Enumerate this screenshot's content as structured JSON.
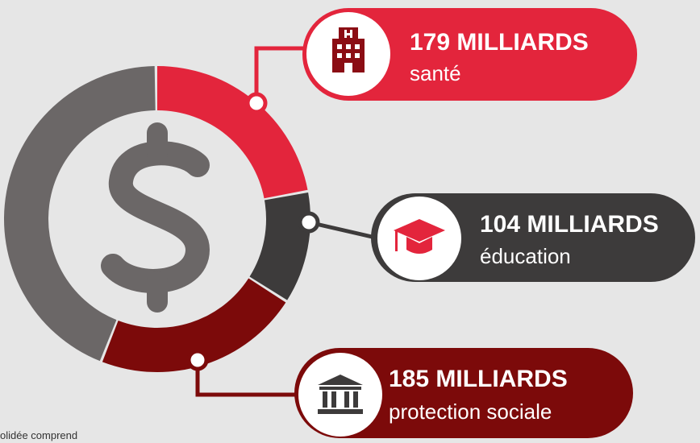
{
  "callouts": [
    {
      "amount": "179 MILLIARDS",
      "label": "santé"
    },
    {
      "amount": "104 MILLIARDS",
      "label": "éducation"
    },
    {
      "amount": "185 MILLIARDS",
      "label": "protection sociale"
    }
  ],
  "footnote": "olidée comprend"
}
